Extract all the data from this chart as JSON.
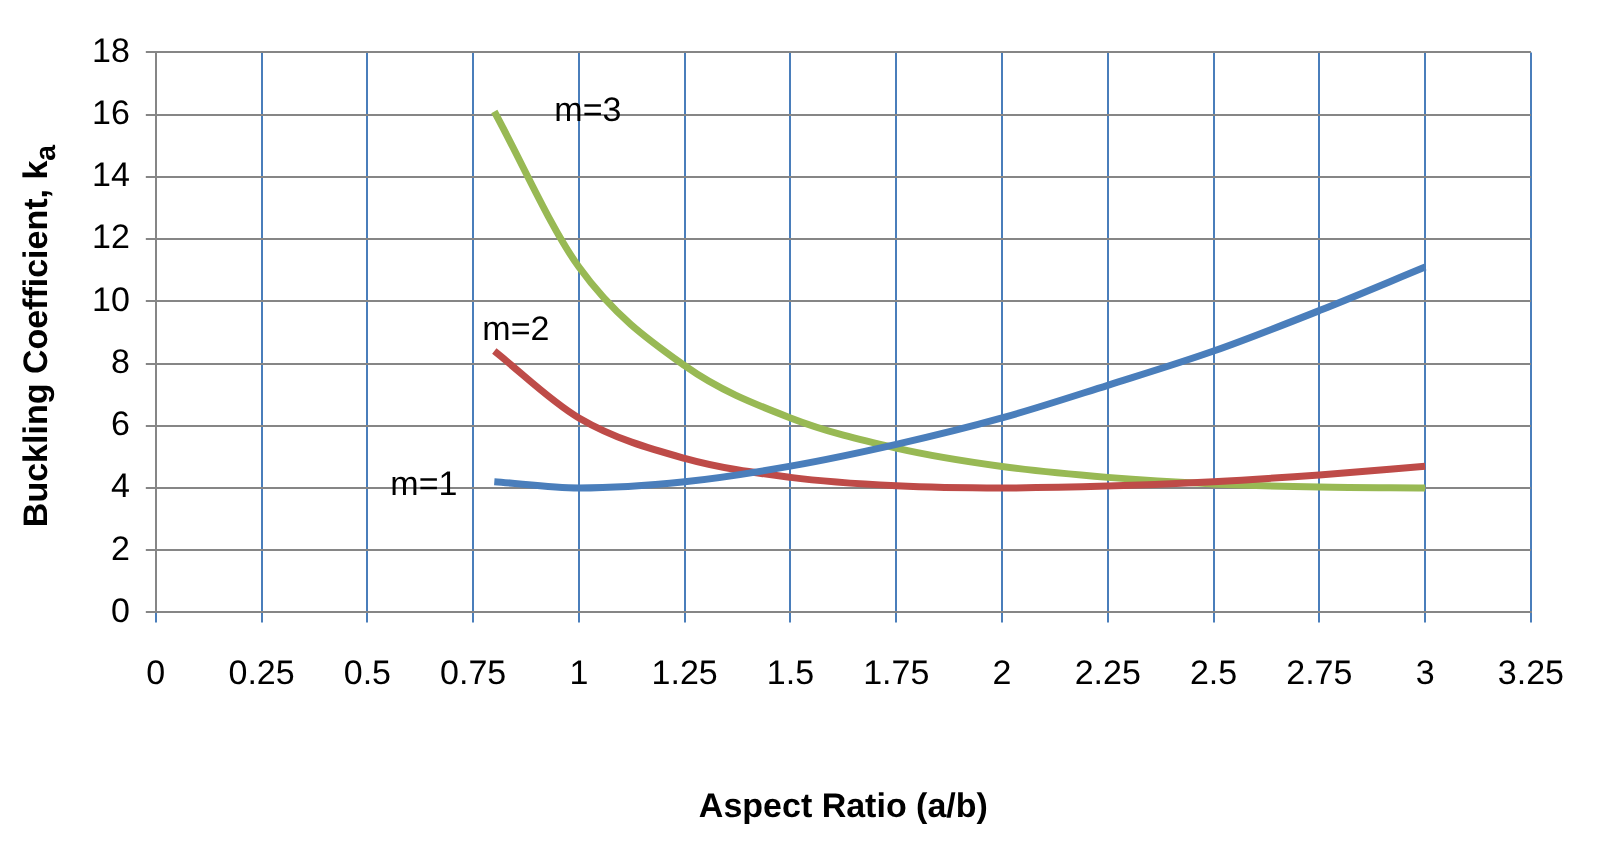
{
  "chart_data": {
    "type": "line",
    "xlabel": "Aspect Ratio (a/b)",
    "ylabel": "Buckling Coefficient, k$_{a}$",
    "x": [
      0.8,
      1,
      1.25,
      1.5,
      1.75,
      2,
      2.25,
      2.5,
      2.75,
      3
    ],
    "series": [
      {
        "name": "m=1",
        "color": "#4a7ebb",
        "values": [
          4.2,
          4,
          4.2,
          4.7,
          5.4,
          6.25,
          7.3,
          8.4,
          9.7,
          11.1
        ]
      },
      {
        "name": "m=2",
        "color": "#be4b48",
        "values": [
          8.4,
          6.25,
          4.95,
          4.34,
          4.07,
          4,
          4.06,
          4.2,
          4.42,
          4.7
        ]
      },
      {
        "name": "m=3",
        "color": "#98b954",
        "values": [
          16.1,
          11.1,
          7.93,
          6.25,
          5.28,
          4.69,
          4.34,
          4.13,
          4.03,
          4
        ]
      }
    ],
    "xlim": [
      0,
      3.25
    ],
    "xticks": [
      0,
      0.25,
      0.5,
      0.75,
      1,
      1.25,
      1.5,
      1.75,
      2,
      2.25,
      2.5,
      2.75,
      3,
      3.25
    ],
    "ylim": [
      0,
      18
    ],
    "yticks": [
      0,
      2,
      4,
      6,
      8,
      10,
      12,
      14,
      16,
      18
    ],
    "grid": true,
    "legend": false,
    "marker": "none",
    "line_style": "solid"
  }
}
